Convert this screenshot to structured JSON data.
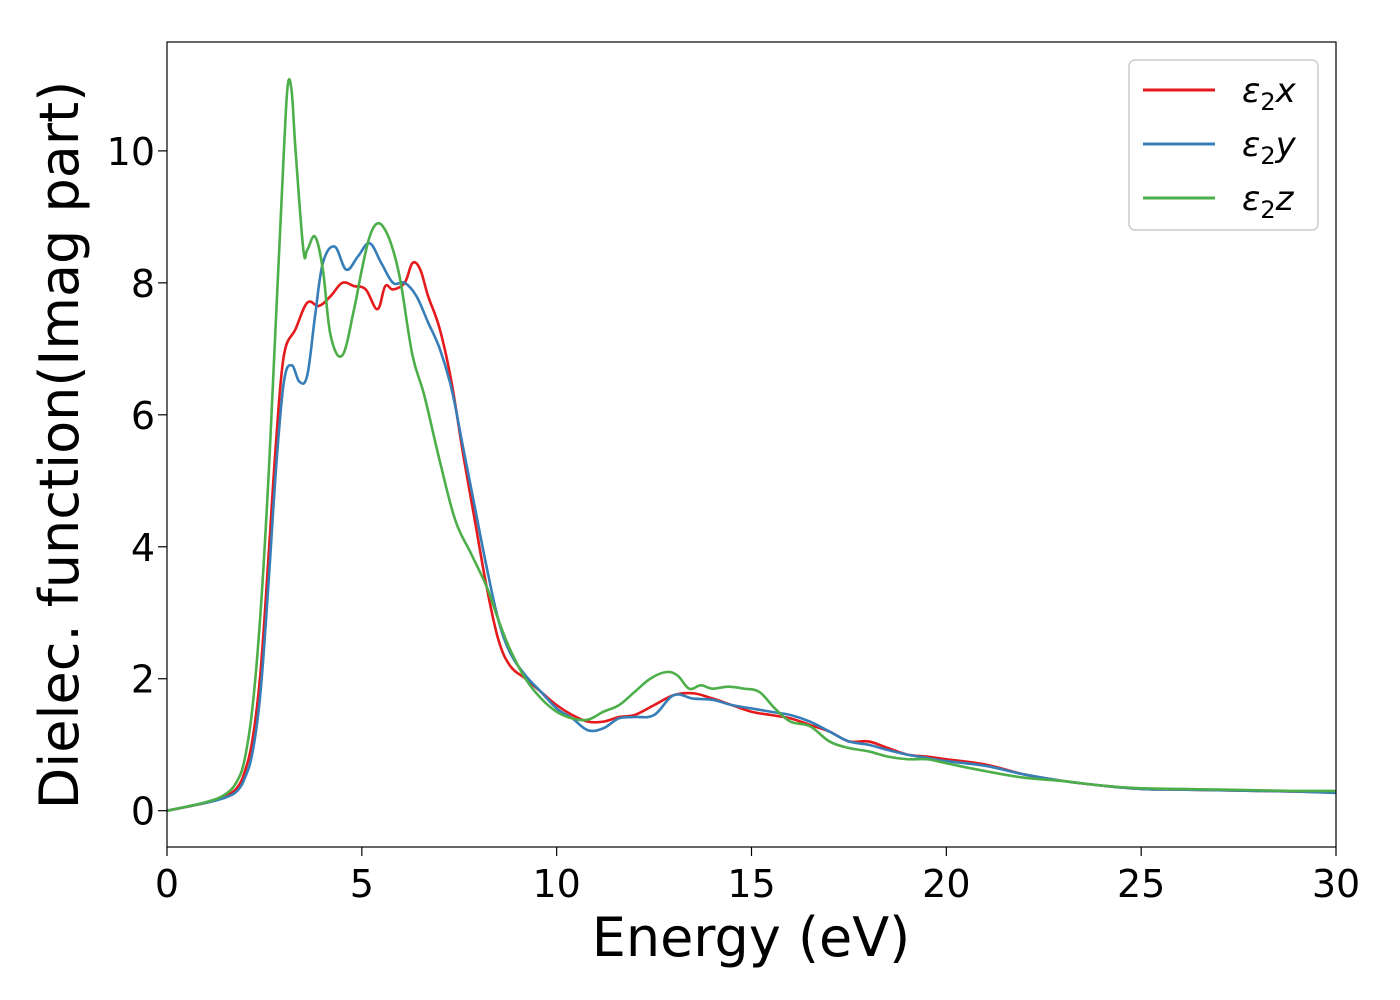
{
  "chart_data": {
    "type": "line",
    "title": "",
    "xlabel": "Energy (eV)",
    "ylabel": "Dielec. function(Imag part)",
    "xlim": [
      0,
      30
    ],
    "ylim": [
      -0.55,
      11.65
    ],
    "xticks": [
      0,
      5,
      10,
      15,
      20,
      25,
      30
    ],
    "yticks": [
      0,
      2,
      4,
      6,
      8,
      10
    ],
    "grid": false,
    "legend_position": "top-right",
    "series": [
      {
        "name": "ε₂x",
        "legend_main": "ε",
        "legend_sub": "2",
        "legend_suffix": "x",
        "color": "#e41a1c",
        "x": [
          0,
          1.0,
          1.5,
          1.8,
          2.0,
          2.2,
          2.4,
          2.6,
          2.8,
          3.0,
          3.3,
          3.6,
          3.9,
          4.2,
          4.5,
          4.8,
          5.1,
          5.4,
          5.6,
          5.8,
          6.1,
          6.3,
          6.5,
          6.7,
          7.0,
          7.3,
          7.6,
          7.9,
          8.2,
          8.5,
          8.8,
          9.2,
          9.6,
          10.0,
          10.4,
          10.8,
          11.2,
          11.6,
          12.0,
          12.5,
          13.0,
          13.5,
          14.0,
          14.5,
          15.0,
          15.5,
          16.0,
          16.5,
          17.0,
          17.5,
          18.0,
          18.5,
          19.0,
          19.5,
          20.0,
          21.0,
          22.0,
          23.0,
          24.0,
          25.0,
          26.0,
          27.0,
          28.0,
          29.0,
          30.0
        ],
        "values": [
          0,
          0.12,
          0.22,
          0.35,
          0.6,
          1.1,
          2.1,
          3.8,
          5.6,
          6.9,
          7.3,
          7.7,
          7.65,
          7.8,
          8.0,
          7.95,
          7.9,
          7.6,
          7.95,
          7.9,
          8.0,
          8.3,
          8.2,
          7.8,
          7.3,
          6.5,
          5.4,
          4.4,
          3.4,
          2.6,
          2.2,
          2.0,
          1.8,
          1.6,
          1.45,
          1.35,
          1.35,
          1.42,
          1.45,
          1.6,
          1.75,
          1.78,
          1.7,
          1.6,
          1.5,
          1.45,
          1.4,
          1.3,
          1.2,
          1.05,
          1.05,
          0.95,
          0.85,
          0.82,
          0.78,
          0.7,
          0.55,
          0.45,
          0.38,
          0.33,
          0.32,
          0.31,
          0.3,
          0.29,
          0.28
        ]
      },
      {
        "name": "ε₂y",
        "legend_main": "ε",
        "legend_sub": "2",
        "legend_suffix": "y",
        "color": "#377eb8",
        "x": [
          0,
          1.0,
          1.5,
          1.8,
          2.0,
          2.2,
          2.4,
          2.6,
          2.8,
          3.0,
          3.2,
          3.4,
          3.6,
          3.8,
          4.0,
          4.3,
          4.6,
          4.9,
          5.2,
          5.5,
          5.8,
          6.1,
          6.4,
          6.7,
          7.0,
          7.3,
          7.6,
          7.9,
          8.2,
          8.5,
          8.8,
          9.2,
          9.6,
          10.0,
          10.4,
          10.8,
          11.2,
          11.6,
          12.0,
          12.5,
          13.0,
          13.5,
          14.0,
          14.5,
          15.0,
          15.5,
          16.0,
          16.5,
          17.0,
          17.5,
          18.0,
          18.5,
          19.0,
          19.5,
          20.0,
          21.0,
          22.0,
          23.0,
          24.0,
          25.0,
          26.0,
          27.0,
          28.0,
          29.0,
          30.0
        ],
        "values": [
          0,
          0.12,
          0.2,
          0.3,
          0.5,
          0.9,
          1.8,
          3.4,
          5.2,
          6.5,
          6.75,
          6.5,
          6.6,
          7.5,
          8.3,
          8.55,
          8.2,
          8.4,
          8.6,
          8.3,
          8.0,
          8.0,
          7.8,
          7.4,
          7.0,
          6.4,
          5.5,
          4.6,
          3.7,
          2.9,
          2.4,
          2.05,
          1.8,
          1.55,
          1.4,
          1.22,
          1.25,
          1.4,
          1.42,
          1.45,
          1.75,
          1.7,
          1.68,
          1.6,
          1.55,
          1.5,
          1.45,
          1.35,
          1.2,
          1.05,
          1.0,
          0.92,
          0.85,
          0.8,
          0.75,
          0.68,
          0.55,
          0.45,
          0.38,
          0.33,
          0.32,
          0.31,
          0.3,
          0.29,
          0.27
        ]
      },
      {
        "name": "ε₂z",
        "legend_main": "ε",
        "legend_sub": "2",
        "legend_suffix": "z",
        "color": "#4daf4a",
        "x": [
          0,
          1.0,
          1.5,
          1.8,
          2.0,
          2.2,
          2.4,
          2.6,
          2.8,
          3.0,
          3.1,
          3.2,
          3.3,
          3.5,
          3.6,
          3.8,
          4.0,
          4.2,
          4.5,
          4.8,
          5.0,
          5.2,
          5.4,
          5.6,
          5.8,
          6.0,
          6.3,
          6.6,
          7.0,
          7.4,
          7.8,
          8.2,
          8.5,
          8.8,
          9.2,
          9.6,
          10.0,
          10.4,
          10.8,
          11.2,
          11.6,
          12.0,
          12.4,
          12.8,
          13.1,
          13.4,
          13.7,
          14.0,
          14.4,
          14.8,
          15.2,
          15.6,
          16.0,
          16.5,
          17.0,
          17.5,
          18.0,
          18.5,
          19.0,
          19.5,
          20.0,
          21.0,
          22.0,
          23.0,
          24.0,
          25.0,
          26.0,
          27.0,
          28.0,
          29.0,
          30.0
        ],
        "values": [
          0,
          0.13,
          0.25,
          0.45,
          0.8,
          1.6,
          3.0,
          5.0,
          7.5,
          10.0,
          11.0,
          10.9,
          10.0,
          8.5,
          8.5,
          8.7,
          8.2,
          7.2,
          6.9,
          7.6,
          8.2,
          8.7,
          8.9,
          8.8,
          8.5,
          8.0,
          6.9,
          6.3,
          5.3,
          4.4,
          3.9,
          3.4,
          2.9,
          2.45,
          2.0,
          1.7,
          1.5,
          1.4,
          1.38,
          1.5,
          1.6,
          1.8,
          2.0,
          2.1,
          2.05,
          1.85,
          1.9,
          1.85,
          1.88,
          1.85,
          1.8,
          1.55,
          1.35,
          1.28,
          1.05,
          0.95,
          0.9,
          0.82,
          0.78,
          0.78,
          0.72,
          0.6,
          0.5,
          0.45,
          0.38,
          0.34,
          0.33,
          0.32,
          0.31,
          0.3,
          0.3
        ]
      }
    ]
  }
}
